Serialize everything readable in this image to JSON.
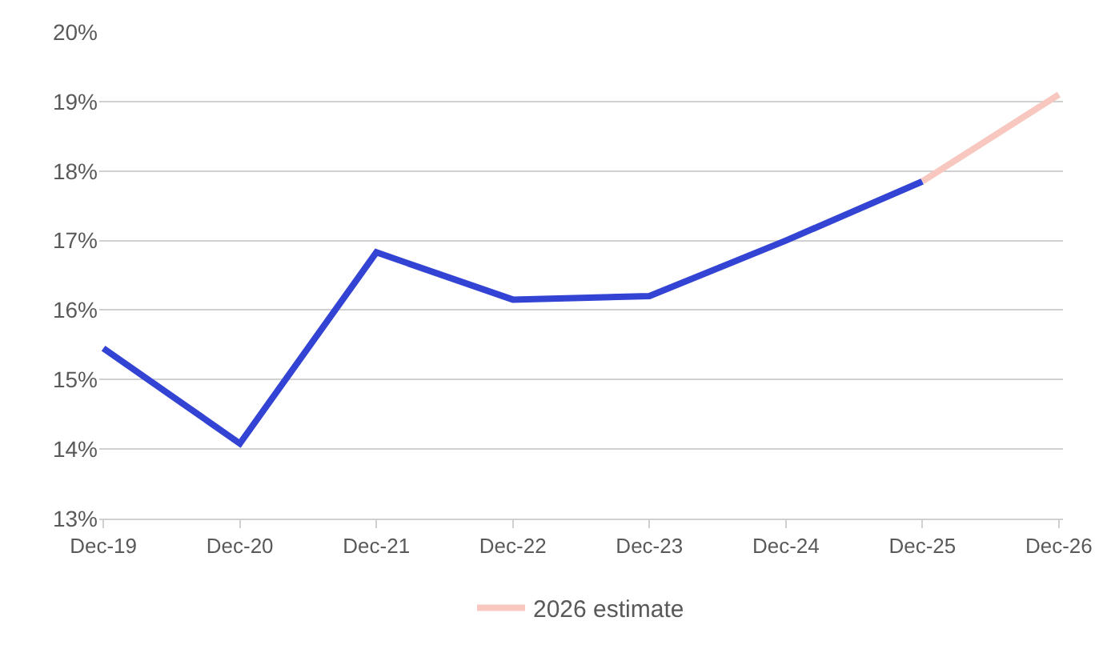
{
  "chart_data": {
    "type": "line",
    "categories": [
      "Dec-19",
      "Dec-20",
      "Dec-21",
      "Dec-22",
      "Dec-23",
      "Dec-24",
      "Dec-25",
      "Dec-26"
    ],
    "series": [
      {
        "color": "#3344d4",
        "values": [
          15.45,
          14.08,
          16.83,
          16.15,
          16.2,
          17.0,
          17.85,
          null
        ]
      },
      {
        "name": "2026 estimate",
        "color": "#f8c8c0",
        "values": [
          null,
          null,
          null,
          null,
          null,
          null,
          17.85,
          19.1
        ]
      }
    ],
    "ylim": [
      13,
      20
    ],
    "yticks": [
      {
        "value": 13,
        "label": "13%"
      },
      {
        "value": 14,
        "label": "14%"
      },
      {
        "value": 15,
        "label": "15%"
      },
      {
        "value": 16,
        "label": "16%"
      },
      {
        "value": 17,
        "label": "17%"
      },
      {
        "value": 18,
        "label": "18%"
      },
      {
        "value": 19,
        "label": "19%"
      },
      {
        "value": 20,
        "label": "20%"
      }
    ],
    "grid": "y",
    "legend": "bottom",
    "marker": "none",
    "line_style": "solid"
  }
}
